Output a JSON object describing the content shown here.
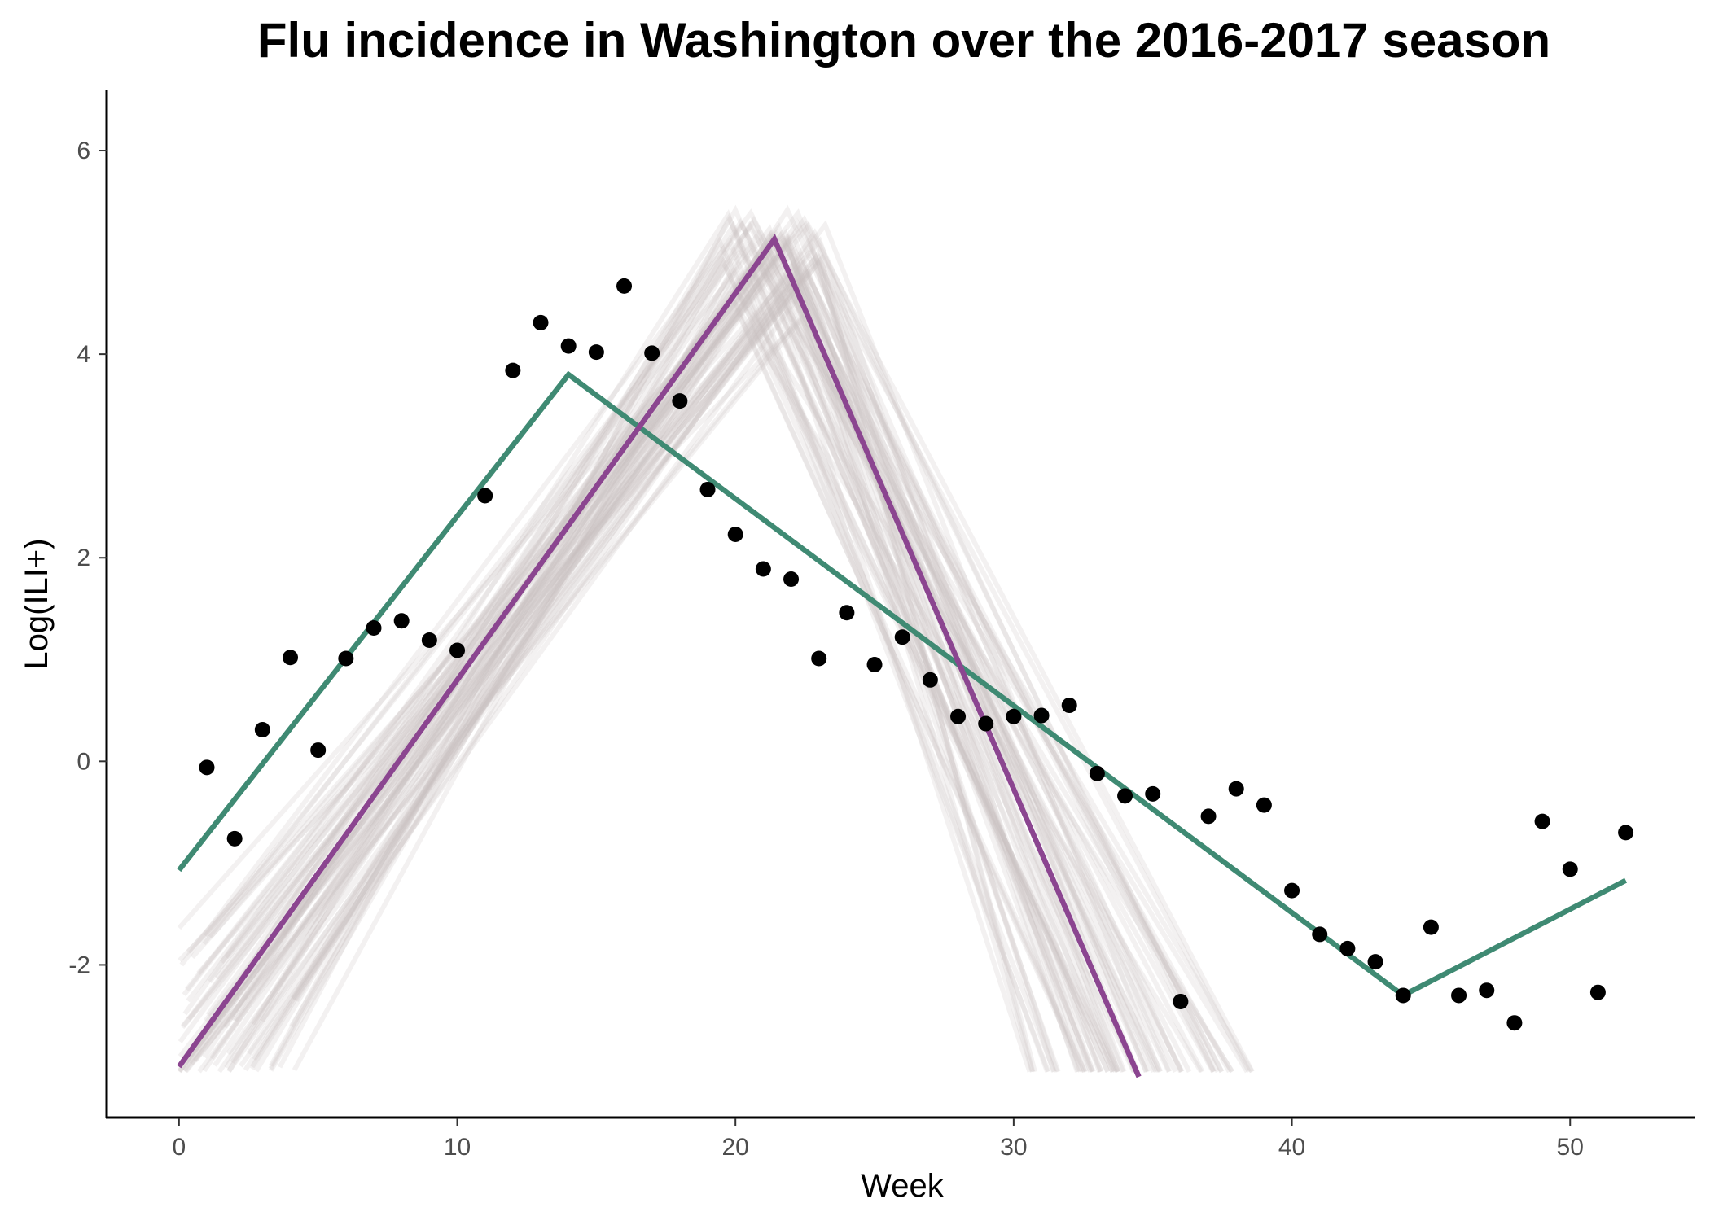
{
  "chart_data": {
    "type": "line",
    "title": "Flu incidence in Washington over the 2016-2017 season",
    "xlabel": "Week",
    "ylabel": "Log(ILI+)",
    "xlim": [
      -2.6,
      54.5
    ],
    "ylim": [
      -3.5,
      6.6
    ],
    "x_ticks": [
      0,
      10,
      20,
      30,
      40,
      50
    ],
    "y_ticks": [
      -2,
      0,
      2,
      4,
      6
    ],
    "grid": false,
    "legend": "none",
    "colors": {
      "observed": "#000000",
      "fit_green": "#3f8a73",
      "fit_purple": "#8b4590",
      "samples": "#c9c0c0"
    },
    "observed_points": {
      "x": [
        1,
        2,
        3,
        4,
        5,
        6,
        7,
        8,
        9,
        10,
        11,
        12,
        13,
        14,
        15,
        16,
        17,
        18,
        19,
        20,
        21,
        22,
        23,
        24,
        25,
        26,
        27,
        28,
        29,
        30,
        31,
        32,
        33,
        34,
        35,
        36,
        37,
        38,
        39,
        40,
        41,
        42,
        43,
        44,
        45,
        46,
        47,
        48,
        49,
        50,
        51,
        52
      ],
      "y": [
        -0.06,
        -0.76,
        0.31,
        1.02,
        0.11,
        1.01,
        1.31,
        1.38,
        1.19,
        1.09,
        2.61,
        3.84,
        4.31,
        4.08,
        4.02,
        4.67,
        4.01,
        3.54,
        2.67,
        2.23,
        1.89,
        1.79,
        1.01,
        1.46,
        0.95,
        1.22,
        0.8,
        0.44,
        0.37,
        0.44,
        0.45,
        0.55,
        -0.12,
        -0.34,
        -0.32,
        -2.36,
        -0.54,
        -0.27,
        -0.43,
        -1.27,
        -1.7,
        -1.84,
        -1.97,
        -2.3,
        -1.63,
        -2.3,
        -2.25,
        -2.57,
        -0.59,
        -1.06,
        -2.27,
        -0.7
      ]
    },
    "series": [
      {
        "x": [
          0,
          14,
          44,
          52
        ],
        "y": [
          -1.07,
          3.8,
          -2.3,
          -1.17
        ]
      },
      {
        "x": [
          0,
          21.4,
          34.5
        ],
        "y": [
          -3.0,
          5.13,
          -3.1
        ]
      }
    ],
    "sample_band": {
      "count": 70,
      "start_x": [
        0,
        4.3
      ],
      "start_y": [
        -3.05,
        -1.6
      ],
      "peak_x": [
        19.4,
        23.3
      ],
      "peak_y": [
        4.2,
        5.42
      ],
      "end_x": [
        30.5,
        38.6
      ],
      "end_y": -3.05
    }
  }
}
